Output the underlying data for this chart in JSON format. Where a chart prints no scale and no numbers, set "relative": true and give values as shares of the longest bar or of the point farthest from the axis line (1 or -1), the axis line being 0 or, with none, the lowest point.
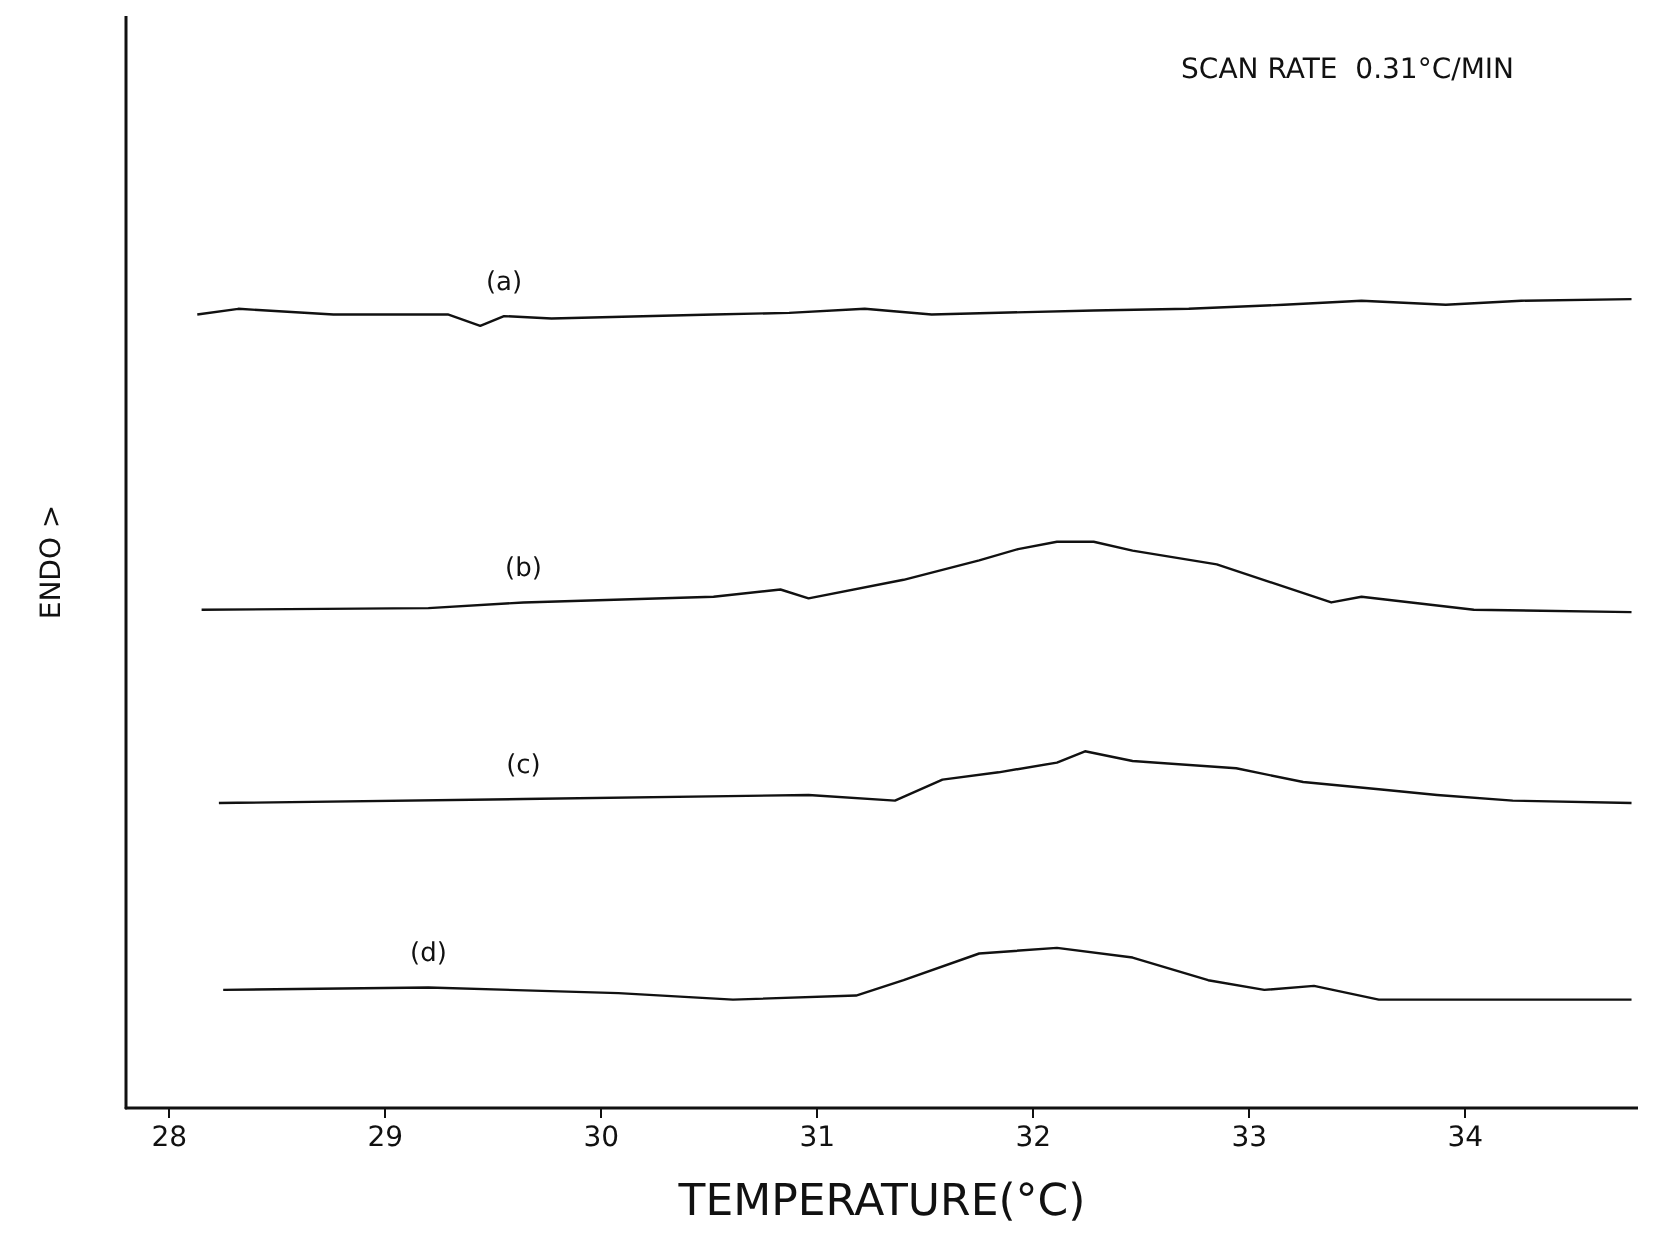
{
  "chart_data": {
    "type": "line",
    "relative": true,
    "xlabel": "TEMPERATURE(°C)",
    "ylabel": "ENDO >",
    "annotations": [
      "SCAN RATE  0.31°C/MIN"
    ],
    "xlim": [
      27.8,
      34.8
    ],
    "xticks": [
      28,
      29,
      30,
      31,
      32,
      33,
      34
    ],
    "grid": false,
    "legend": false,
    "marker": "none",
    "line_style": "solid",
    "series": [
      {
        "name": "(a)",
        "color": "#111111",
        "x": [
          28.13,
          28.32,
          28.76,
          29.29,
          29.44,
          29.55,
          29.77,
          30.52,
          30.87,
          31.22,
          31.53,
          32.28,
          32.72,
          33.16,
          33.52,
          33.91,
          34.26,
          34.77
        ],
        "values": [
          0.981,
          0.988,
          0.981,
          0.981,
          0.967,
          0.979,
          0.976,
          0.981,
          0.983,
          0.988,
          0.981,
          0.986,
          0.988,
          0.993,
          0.998,
          0.993,
          0.998,
          1
        ]
      },
      {
        "name": "(b)",
        "color": "#111111",
        "x": [
          28.15,
          29.2,
          29.64,
          30.52,
          30.83,
          30.96,
          31.4,
          31.75,
          31.93,
          32.11,
          32.28,
          32.46,
          32.85,
          33.38,
          33.52,
          34.04,
          34.77
        ],
        "values": [
          0.616,
          0.618,
          0.625,
          0.632,
          0.641,
          0.63,
          0.653,
          0.677,
          0.691,
          0.7,
          0.7,
          0.689,
          0.672,
          0.625,
          0.632,
          0.616,
          0.613
        ]
      },
      {
        "name": "(c)",
        "color": "#111111",
        "x": [
          28.23,
          29.64,
          30.96,
          31.36,
          31.58,
          31.84,
          32.11,
          32.24,
          32.46,
          32.94,
          33.25,
          33.6,
          33.87,
          34.22,
          34.77
        ],
        "values": [
          0.377,
          0.382,
          0.387,
          0.38,
          0.406,
          0.415,
          0.427,
          0.441,
          0.429,
          0.42,
          0.403,
          0.394,
          0.387,
          0.38,
          0.377
        ]
      },
      {
        "name": "(d)",
        "color": "#111111",
        "x": [
          28.25,
          29.2,
          30.08,
          30.61,
          31.18,
          31.4,
          31.75,
          32.11,
          32.46,
          32.81,
          33.07,
          33.3,
          33.6,
          34.77
        ],
        "values": [
          0.146,
          0.149,
          0.142,
          0.134,
          0.139,
          0.158,
          0.191,
          0.198,
          0.186,
          0.158,
          0.146,
          0.151,
          0.134,
          0.134
        ]
      }
    ]
  }
}
